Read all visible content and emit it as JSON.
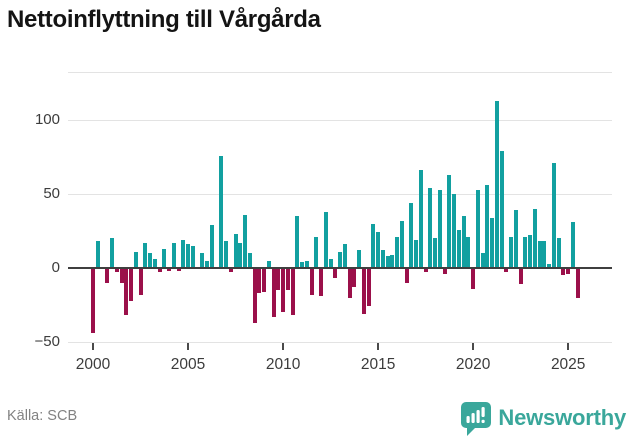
{
  "title": "Nettoinflyttning till Vårgårda",
  "footer": {
    "source": "Källa: SCB"
  },
  "brand": {
    "name": "Newsworthy",
    "icon": "newsworthy-bubble-barchart-icon",
    "color": "#3AA79B"
  },
  "chart_data": {
    "type": "bar",
    "title": "Nettoinflyttning till Vårgårda",
    "xlabel": "",
    "ylabel": "",
    "legend": "none",
    "grid": true,
    "zero_line": true,
    "ylim": [
      -50,
      132
    ],
    "y_ticks": {
      "values": [
        100,
        50,
        0,
        -50
      ],
      "labels": [
        "100",
        "50",
        "0",
        "−50"
      ]
    },
    "x_ticks": {
      "years": [
        "2000",
        "2005",
        "2010",
        "2015",
        "2020",
        "2025"
      ]
    },
    "colors": {
      "positive": "#12A0A0",
      "negative": "#9B104A"
    },
    "x": [
      "2000Q1",
      "2000Q2",
      "2000Q3",
      "2000Q4",
      "2001Q1",
      "2001Q2",
      "2001Q3",
      "2001Q4",
      "2002Q1",
      "2002Q2",
      "2002Q3",
      "2002Q4",
      "2003Q1",
      "2003Q2",
      "2003Q3",
      "2003Q4",
      "2004Q1",
      "2004Q2",
      "2004Q3",
      "2004Q4",
      "2005Q1",
      "2005Q2",
      "2005Q3",
      "2005Q4",
      "2006Q1",
      "2006Q2",
      "2006Q3",
      "2006Q4",
      "2007Q1",
      "2007Q2",
      "2007Q3",
      "2007Q4",
      "2008Q1",
      "2008Q2",
      "2008Q3",
      "2008Q4",
      "2009Q1",
      "2009Q2",
      "2009Q3",
      "2009Q4",
      "2010Q1",
      "2010Q2",
      "2010Q3",
      "2010Q4",
      "2011Q1",
      "2011Q2",
      "2011Q3",
      "2011Q4",
      "2012Q1",
      "2012Q2",
      "2012Q3",
      "2012Q4",
      "2013Q1",
      "2013Q2",
      "2013Q3",
      "2013Q4",
      "2014Q1",
      "2014Q2",
      "2014Q3",
      "2014Q4",
      "2015Q1",
      "2015Q2",
      "2015Q3",
      "2015Q4",
      "2016Q1",
      "2016Q2",
      "2016Q3",
      "2016Q4",
      "2017Q1",
      "2017Q2",
      "2017Q3",
      "2017Q4",
      "2018Q1",
      "2018Q2",
      "2018Q3",
      "2018Q4",
      "2019Q1",
      "2019Q2",
      "2019Q3",
      "2019Q4",
      "2020Q1",
      "2020Q2",
      "2020Q3",
      "2020Q4",
      "2021Q1",
      "2021Q2",
      "2021Q3",
      "2021Q4",
      "2022Q1",
      "2022Q2",
      "2022Q3",
      "2022Q4",
      "2023Q1",
      "2023Q2",
      "2023Q3",
      "2023Q4",
      "2024Q1",
      "2024Q2",
      "2024Q3",
      "2024Q4",
      "2025Q1",
      "2025Q2",
      "2025Q3"
    ],
    "values": [
      -44,
      18,
      0,
      -10,
      20,
      -3,
      -10,
      -32,
      -22,
      11,
      -18,
      17,
      10,
      6,
      -3,
      13,
      -2,
      17,
      -2,
      19,
      16,
      15,
      0,
      10,
      5,
      29,
      0,
      76,
      18,
      -3,
      23,
      17,
      36,
      10,
      -37,
      -17,
      -16,
      5,
      -33,
      -15,
      -30,
      -15,
      -32,
      35,
      4,
      5,
      -18,
      21,
      -19,
      38,
      6,
      -7,
      11,
      16,
      -20,
      -13,
      12,
      -31,
      -26,
      30,
      24,
      12,
      8,
      9,
      21,
      32,
      -10,
      44,
      19,
      66,
      -3,
      54,
      20,
      53,
      -4,
      63,
      50,
      26,
      35,
      21,
      -14,
      53,
      10,
      56,
      34,
      113,
      79,
      -3,
      21,
      39,
      -11,
      21,
      22,
      40,
      18,
      18,
      3,
      71,
      20,
      -5,
      -4,
      31,
      -20
    ]
  }
}
